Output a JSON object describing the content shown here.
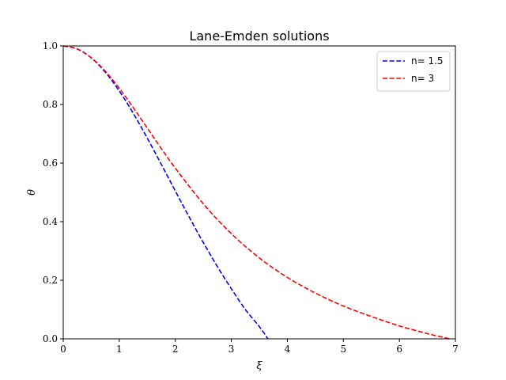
{
  "chart_data": {
    "type": "line",
    "title": "Lane-Emden solutions",
    "xlabel": "ξ",
    "ylabel": "θ",
    "xlim": [
      0,
      7
    ],
    "ylim": [
      0,
      1
    ],
    "xticks": [
      0,
      1,
      2,
      3,
      4,
      5,
      6,
      7
    ],
    "xtick_labels": [
      "0",
      "1",
      "2",
      "3",
      "4",
      "5",
      "6",
      "7"
    ],
    "yticks": [
      0.0,
      0.2,
      0.4,
      0.6,
      0.8,
      1.0
    ],
    "ytick_labels": [
      "0.0",
      "0.2",
      "0.4",
      "0.6",
      "0.8",
      "1.0"
    ],
    "grid": false,
    "legend_position": "top-right",
    "series": [
      {
        "name": "n= 1.5",
        "color": "#0000ff",
        "line_style": "dashed",
        "x": [
          0,
          0.25,
          0.5,
          0.75,
          1.0,
          1.25,
          1.5,
          1.75,
          2.0,
          2.25,
          2.5,
          2.75,
          3.0,
          3.25,
          3.5,
          3.65375
        ],
        "y": [
          1.0,
          0.9896,
          0.9591,
          0.9104,
          0.8462,
          0.77,
          0.6852,
          0.5959,
          0.505,
          0.415,
          0.3289,
          0.2471,
          0.1711,
          0.1004,
          0.0418,
          0.0
        ]
      },
      {
        "name": "n= 3",
        "color": "#ff0000",
        "line_style": "dashed",
        "x": [
          0,
          0.25,
          0.5,
          0.75,
          1.0,
          1.25,
          1.5,
          1.75,
          2.0,
          2.5,
          3.0,
          3.5,
          4.0,
          4.5,
          5.0,
          5.5,
          6.0,
          6.5,
          6.89685
        ],
        "y": [
          1.0,
          0.9897,
          0.9598,
          0.9138,
          0.8555,
          0.7893,
          0.7195,
          0.6498,
          0.5829,
          0.4611,
          0.3592,
          0.2763,
          0.2098,
          0.1563,
          0.1121,
          0.0763,
          0.0441,
          0.018,
          0.0
        ]
      }
    ]
  }
}
